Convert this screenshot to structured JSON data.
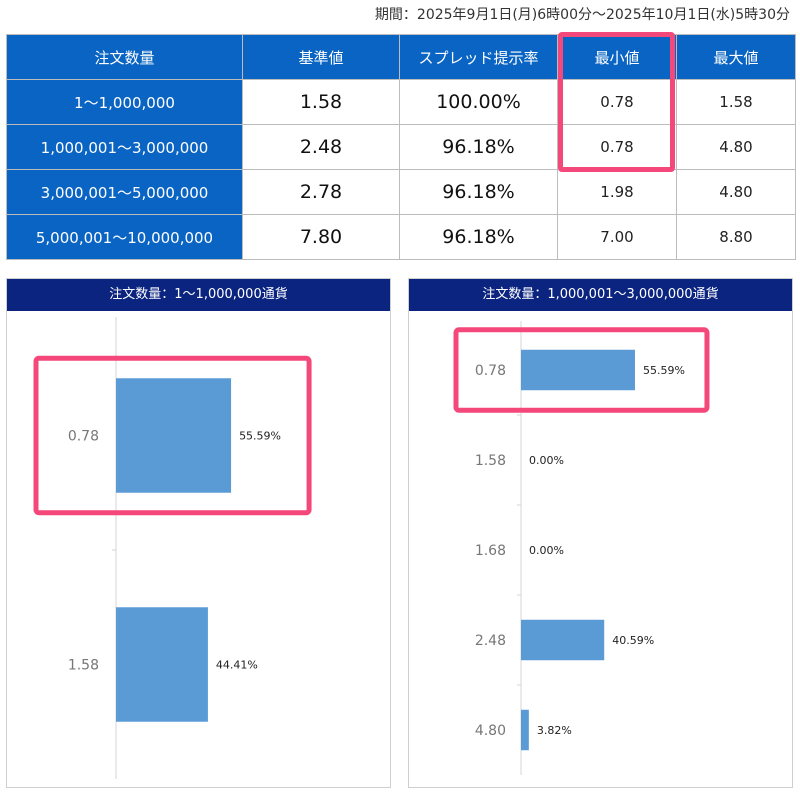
{
  "period": "期間：2025年9月1日(月)6時00分〜2025年10月1日(水)5時30分",
  "table": {
    "headers": [
      "注文数量",
      "基準値",
      "スプレッド提示率",
      "最小値",
      "最大値"
    ],
    "rows": [
      {
        "qty": "1〜1,000,000",
        "base": "1.58",
        "rate": "100.00%",
        "min": "0.78",
        "max": "1.58"
      },
      {
        "qty": "1,000,001〜3,000,000",
        "base": "2.48",
        "rate": "96.18%",
        "min": "0.78",
        "max": "4.80"
      },
      {
        "qty": "3,000,001〜5,000,000",
        "base": "2.78",
        "rate": "96.18%",
        "min": "1.98",
        "max": "4.80"
      },
      {
        "qty": "5,000,001〜10,000,000",
        "base": "7.80",
        "rate": "96.18%",
        "min": "7.00",
        "max": "8.80"
      }
    ]
  },
  "colors": {
    "header_blue": "#0a64c3",
    "panel_header_navy": "#0b2480",
    "bar": "#5b9bd5",
    "highlight": "#f4487a"
  },
  "chart_data": [
    {
      "type": "bar",
      "orientation": "horizontal",
      "title": "注文数量：1〜1,000,000通貨",
      "categories": [
        "0.78",
        "1.58"
      ],
      "values": [
        55.59,
        44.41
      ],
      "value_labels": [
        "55.59%",
        "44.41%"
      ],
      "xlim": [
        0,
        100
      ],
      "highlighted_category": "0.78"
    },
    {
      "type": "bar",
      "orientation": "horizontal",
      "title": "注文数量：1,000,001〜3,000,000通貨",
      "categories": [
        "0.78",
        "1.58",
        "1.68",
        "2.48",
        "4.80"
      ],
      "values": [
        55.59,
        0.0,
        0.0,
        40.59,
        3.82
      ],
      "value_labels": [
        "55.59%",
        "0.00%",
        "0.00%",
        "40.59%",
        "3.82%"
      ],
      "xlim": [
        0,
        100
      ],
      "highlighted_category": "0.78"
    }
  ]
}
